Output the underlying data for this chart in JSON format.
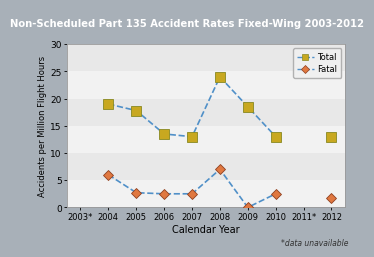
{
  "title": "Non-Scheduled Part 135 Accident Rates Fixed-Wing 2003-2012",
  "xlabel": "Calendar Year",
  "ylabel": "Accidents per Million Flight Hours",
  "title_bg": "#636363",
  "title_color": "#ffffff",
  "plot_bg": "#e8e8e8",
  "figure_bg": "#a8b0b8",
  "years": [
    "2003*",
    "2004",
    "2005",
    "2006",
    "2007",
    "2008",
    "2009",
    "2010",
    "2011*",
    "2012"
  ],
  "total_values": [
    null,
    19.0,
    17.8,
    13.5,
    13.0,
    24.0,
    18.5,
    13.0,
    null,
    13.0
  ],
  "fatal_values": [
    null,
    6.0,
    2.7,
    2.5,
    2.5,
    7.0,
    0.0,
    2.5,
    null,
    1.8
  ],
  "line_color": "#5090c8",
  "total_marker_color": "#c8a820",
  "fatal_marker_color": "#e07840",
  "total_marker_edge": "#888820",
  "fatal_marker_edge": "#904020",
  "ylim": [
    0,
    30
  ],
  "yticks": [
    0,
    5,
    10,
    15,
    20,
    25,
    30
  ],
  "band_colors": [
    "#ffffff",
    "#d0d0d0"
  ],
  "footnote": "*data unavailable",
  "legend_total": "Total",
  "legend_fatal": "Fatal"
}
